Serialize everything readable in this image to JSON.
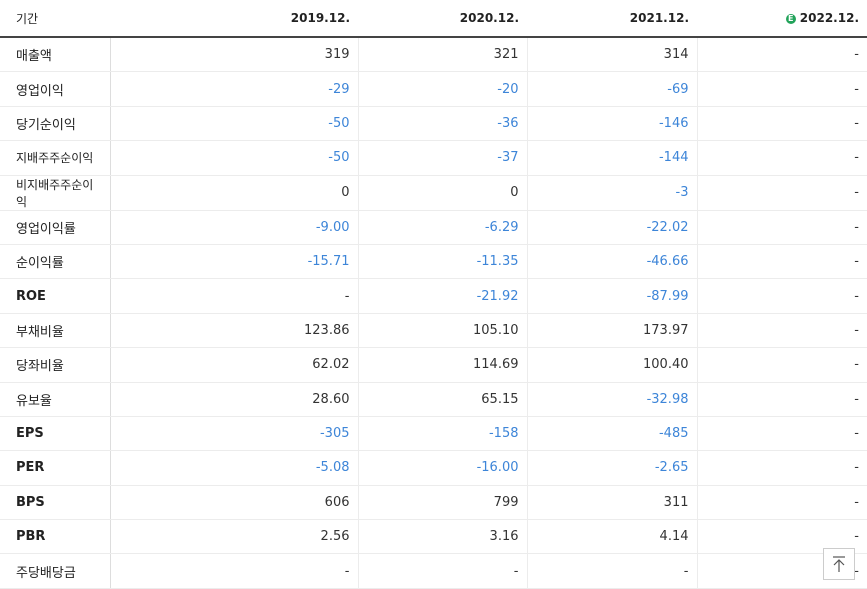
{
  "table": {
    "header": [
      "기간",
      "2019.12.",
      "2020.12.",
      "2021.12.",
      "2022.12."
    ],
    "rows": [
      [
        "매출액",
        "319",
        "321",
        "314",
        "-"
      ],
      [
        "영업이익",
        "-29",
        "-20",
        "-69",
        "-"
      ],
      [
        "당기순이익",
        "-50",
        "-36",
        "-146",
        "-"
      ],
      [
        "지배주주순이익",
        "-50",
        "-37",
        "-144",
        "-"
      ],
      [
        "비지배주주순이익",
        "0",
        "0",
        "-3",
        "-"
      ],
      [
        "영업이익률",
        "-9.00",
        "-6.29",
        "-22.02",
        "-"
      ],
      [
        "순이익률",
        "-15.71",
        "-11.35",
        "-46.66",
        "-"
      ],
      [
        "ROE",
        "-",
        "-21.92",
        "-87.99",
        "-"
      ],
      [
        "부채비율",
        "123.86",
        "105.10",
        "173.97",
        "-"
      ],
      [
        "당좌비율",
        "62.02",
        "114.69",
        "100.40",
        "-"
      ],
      [
        "유보율",
        "28.60",
        "65.15",
        "-32.98",
        "-"
      ],
      [
        "EPS",
        "-305",
        "-158",
        "-485",
        "-"
      ],
      [
        "PER",
        "-5.08",
        "-16.00",
        "-2.65",
        "-"
      ],
      [
        "BPS",
        "606",
        "799",
        "311",
        "-"
      ],
      [
        "PBR",
        "2.56",
        "3.16",
        "4.14",
        "-"
      ],
      [
        "주당배당금",
        "-",
        "-",
        "-",
        "-"
      ]
    ]
  }
}
